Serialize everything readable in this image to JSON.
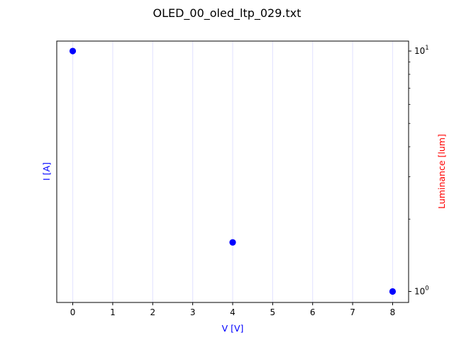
{
  "chart_data": {
    "type": "scatter",
    "title": "OLED_00_oled_ltp_029.txt",
    "xlabel": "V [V]",
    "ylabel_left": "I [A]",
    "ylabel_right": "Luminance [lum]",
    "xlim": [
      -0.4,
      8.4
    ],
    "xticks": [
      0,
      1,
      2,
      3,
      4,
      5,
      6,
      7,
      8
    ],
    "xtick_labels": [
      "0",
      "1",
      "2",
      "3",
      "4",
      "5",
      "6",
      "7",
      "8"
    ],
    "y_right_scale": "log",
    "y_right_lim": [
      0.9,
      11
    ],
    "y_right_major_ticks": [
      {
        "value": 1,
        "base": "10",
        "exp": "0"
      },
      {
        "value": 10,
        "base": "10",
        "exp": "1"
      }
    ],
    "y_right_minor_ticks": [
      2,
      3,
      4,
      5,
      6,
      7,
      8,
      9
    ],
    "grid": "vertical",
    "colors": {
      "points": "#0000ff",
      "left_label": "#0000ff",
      "right_label": "#ff0000",
      "grid": "#e6e6ff"
    },
    "series": [
      {
        "axis": "right",
        "x": [
          0,
          4,
          8
        ],
        "y": [
          10,
          1.6,
          1.0
        ]
      }
    ]
  }
}
